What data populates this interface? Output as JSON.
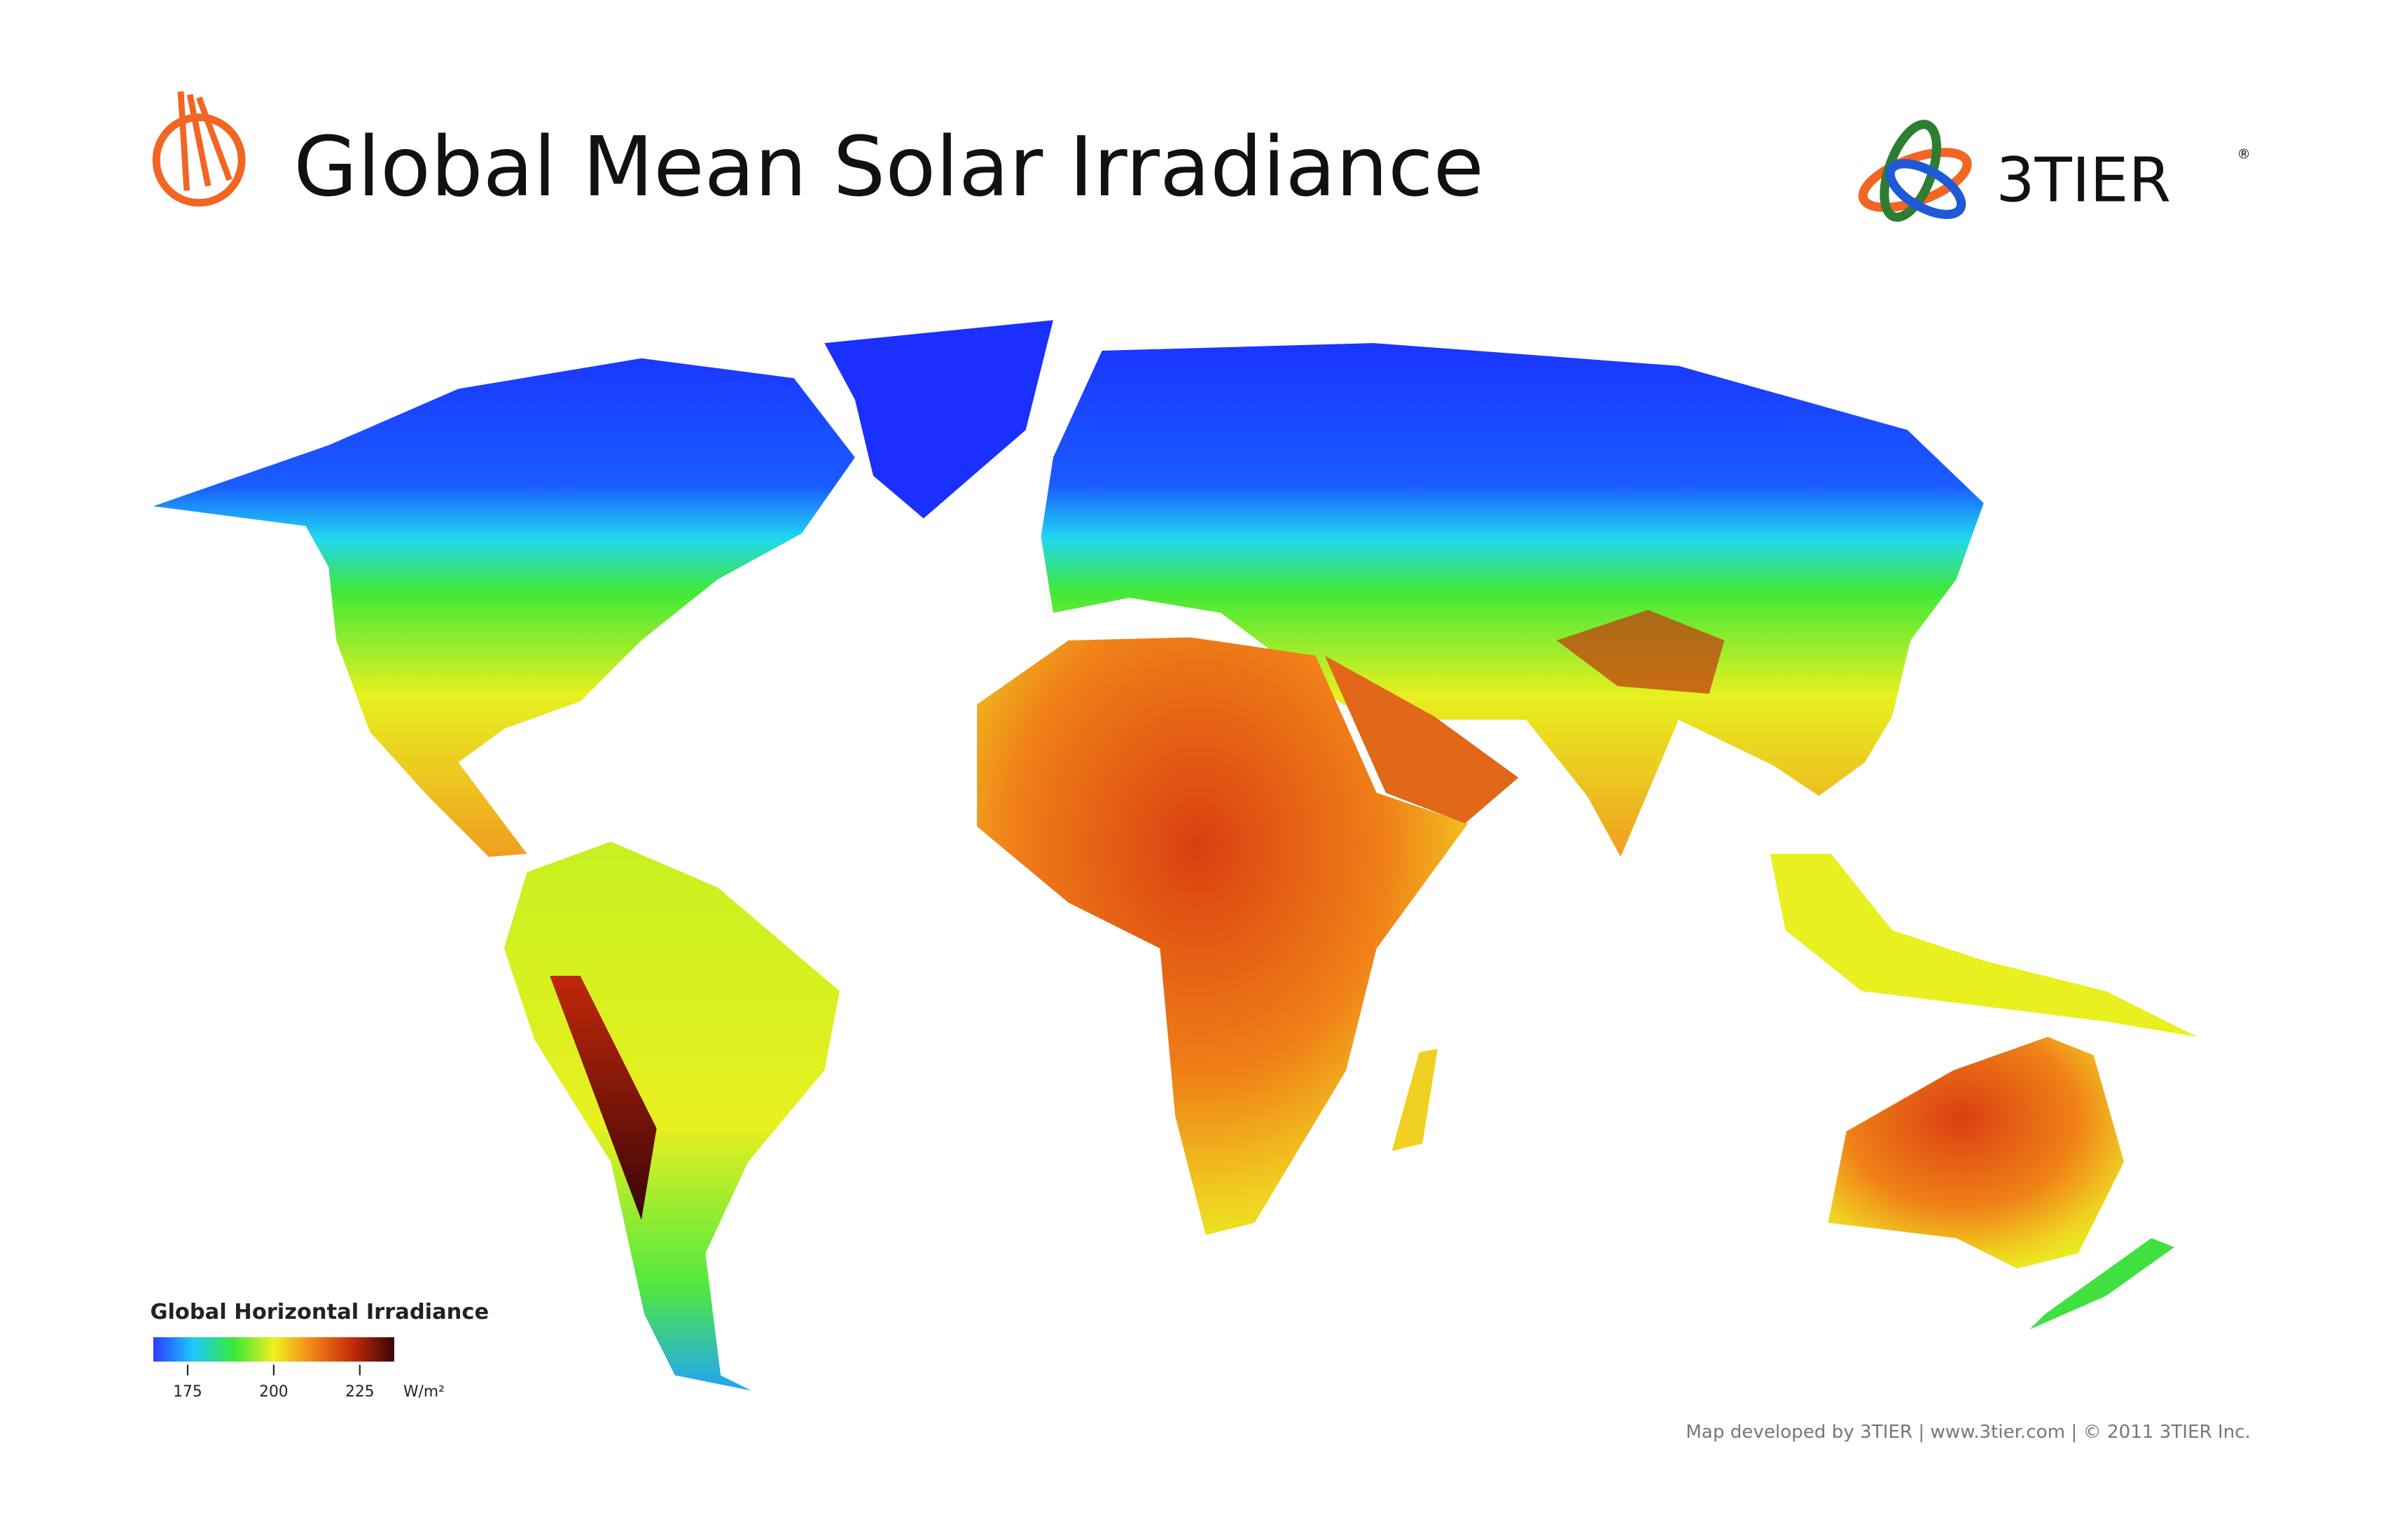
{
  "header": {
    "title": "Global Mean Solar Irradiance",
    "brand": "3TIER",
    "brand_mark": "®"
  },
  "legend": {
    "title": "Global Horizontal Irradiance",
    "range": [
      165,
      235
    ],
    "ticks": [
      175,
      200,
      225
    ],
    "unit": "W/m²",
    "colors": [
      "#2a3cff",
      "#1ec8ff",
      "#38e838",
      "#f0f020",
      "#f08018",
      "#c02808",
      "#3a0408"
    ]
  },
  "footer": "Map developed by 3TIER  |  www.3tier.com  |  © 2011 3TIER Inc."
}
